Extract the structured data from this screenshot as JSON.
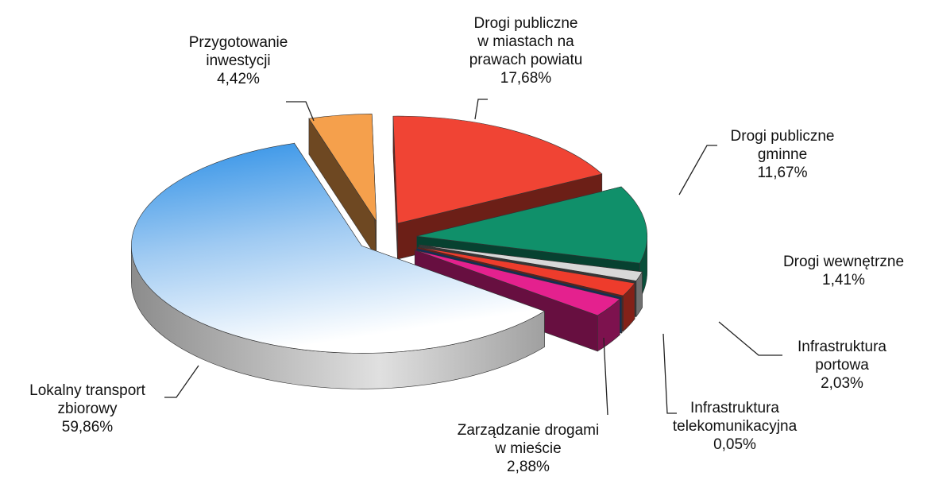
{
  "chart_data": {
    "type": "pie3d",
    "categories": [
      "Przygotowanie\ninwestycji",
      "Drogi publiczne\nw miastach na\nprawach powiatu",
      "Drogi publiczne\ngminne",
      "Drogi wewnętrzne",
      "Infrastruktura\nportowa",
      "Infrastruktura\ntelekomunikacyjna",
      "Zarządzanie drogami\nw mieście",
      "Lokalny transport\nzbiorowy"
    ],
    "values": [
      4.42,
      17.68,
      11.67,
      1.41,
      2.03,
      0.05,
      2.88,
      59.86
    ],
    "value_labels": [
      "4,42%",
      "17,68%",
      "11,67%",
      "1,41%",
      "2,03%",
      "0,05%",
      "2,88%",
      "59,86%"
    ],
    "colors": [
      "#f5a04c",
      "#f04434",
      "#10906a",
      "#d8d8d8",
      "#ee3c2c",
      "#2464c4",
      "#e4218e",
      "#3b9be8"
    ]
  }
}
